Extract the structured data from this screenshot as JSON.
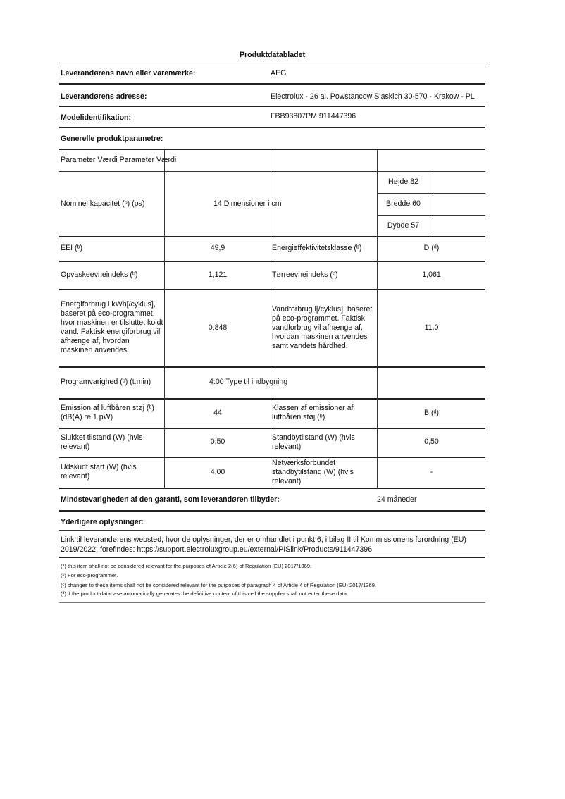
{
  "title": "Produktdatabladet",
  "supplier": {
    "name_label": "Leverandørens navn eller varemærke:",
    "name_value": "AEG",
    "address_label": "Leverandørens adresse:",
    "address_value": "Electrolux - 26 al. Powstancow Slaskich 30-570 - Krakow - PL",
    "model_label": "Modelidentifikation:",
    "model_value": "FBB93807PM 911447396"
  },
  "general_heading": "Generelle produktparametre:",
  "table": {
    "header": "Parameter Værdi Parameter Værdi",
    "capacity_label": "Nominel kapacitet (ᵇ) (ps)",
    "capacity_value": "14 Dimensioner i cm",
    "dims": [
      "Højde 82",
      "Bredde 60",
      "Dybde 57"
    ],
    "rows": [
      {
        "p1": "EEI (ᵇ)",
        "v1": "49,9",
        "p2": "Energieffektivitetsklasse (ᵇ)",
        "v2": "D (ᵈ)"
      },
      {
        "p1": "Opvaskeevneindeks (ᵇ)",
        "v1": "1,121",
        "p2": "Tørreevneindeks (ᵇ)",
        "v2": "1,061"
      },
      {
        "p1": "Energiforbrug i kWh[/cyklus], baseret på eco-programmet, hvor maskinen er tilsluttet koldt vand. Faktisk energiforbrug vil afhænge af, hvordan maskinen anvendes.",
        "v1": "0,848",
        "p2": "Vandforbrug l[/cyklus], baseret på eco-programmet. Faktisk vandforbrug vil afhænge af, hvordan maskinen anvendes samt vandets hårdhed.",
        "v2": "11,0"
      },
      {
        "p1": "Programvarighed (ᵇ) (t:min)",
        "v1": "4:00 Type til indbygning",
        "p2": "",
        "v2": ""
      },
      {
        "p1": "Emission af luftbåren støj (ᵇ) (dB(A) re 1 pW)",
        "v1": "44",
        "p2": "Klassen af emissioner af luftbåren støj (ᵇ)",
        "v2": "B (ᵈ)"
      },
      {
        "p1": "Slukket tilstand (W) (hvis relevant)",
        "v1": "0,50",
        "p2": "Standbytilstand (W) (hvis relevant)",
        "v2": "0,50"
      },
      {
        "p1": "Udskudt start (W) (hvis relevant)",
        "v1": "4,00",
        "p2": "Netværksforbundet standbytilstand (W) (hvis relevant)",
        "v2": "-"
      }
    ]
  },
  "warranty_label": "Mindstevarigheden af den garanti, som leverandøren tilbyder:",
  "warranty_value": "24 måneder",
  "additional_heading": "Yderligere oplysninger:",
  "additional_text": "Link til leverandørens websted, hvor de oplysninger, der er omhandlet i punkt 6, i bilag II til Kommissionens forordning (EU) 2019/2022, forefindes: https://support.electroluxgroup.eu/external/PISlink/Products/911447396",
  "footnotes": [
    "(ᵃ) this item shall not be considered relevant for the purposes of Article 2(6) of Regulation (EU) 2017/1369.",
    "(ᵇ) For eco-programmet.",
    "(ᶜ) changes to these items shall not be considered relevant for the purposes of paragraph 4 of Article 4 of Regulation (EU) 2017/1369.",
    "(ᵈ) if the product database automatically generates the definitive content of this cell the supplier shall not enter these data."
  ]
}
